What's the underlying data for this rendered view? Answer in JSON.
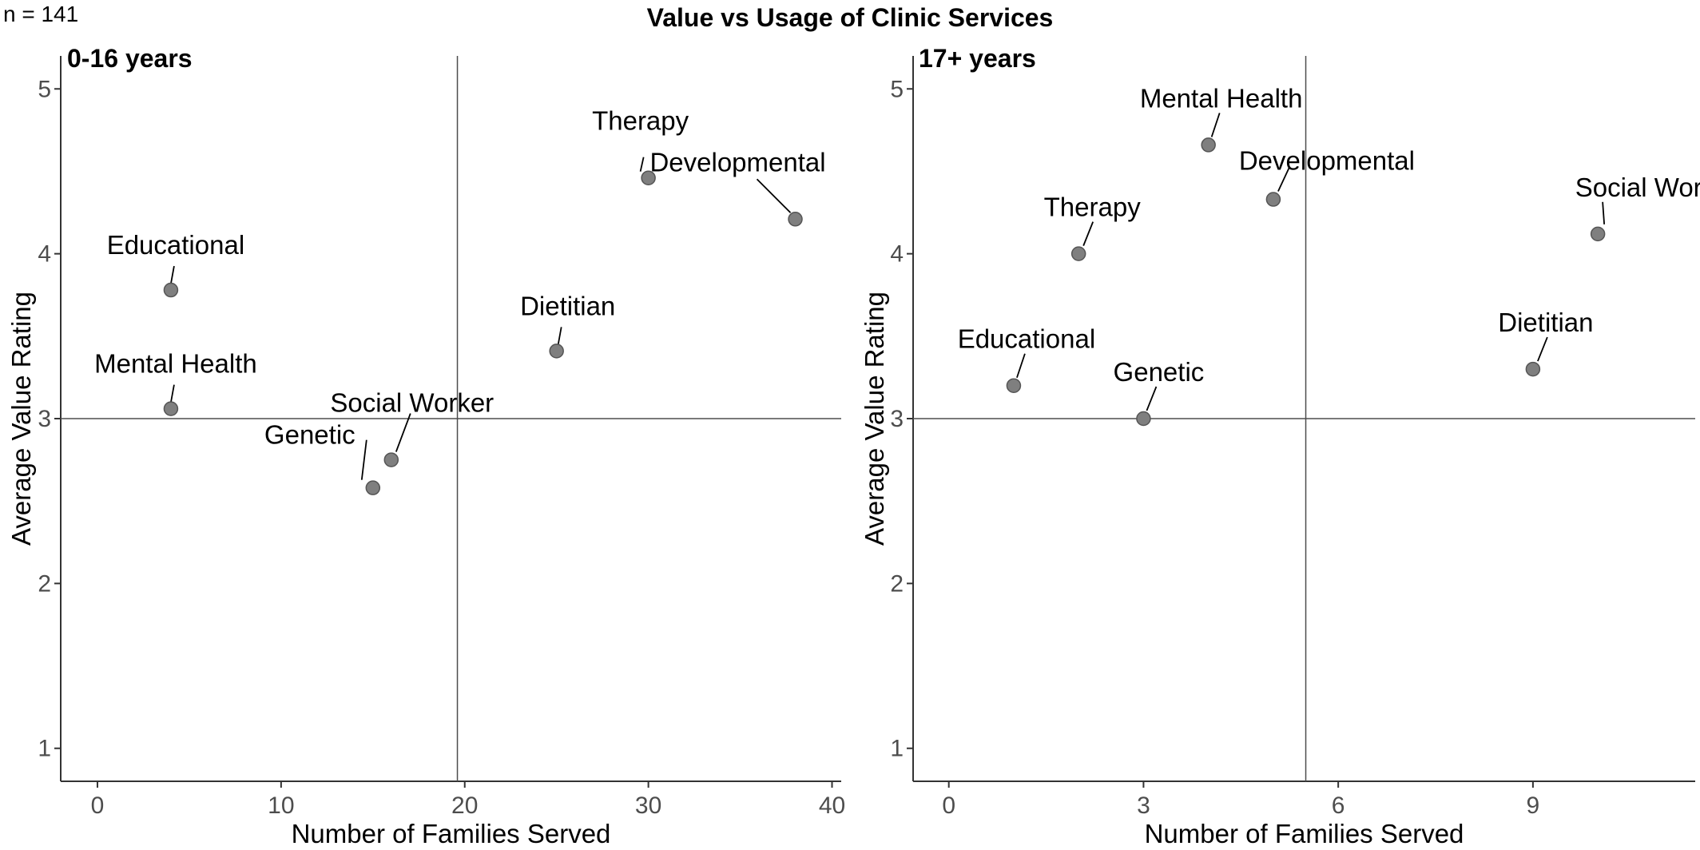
{
  "header": {
    "n_label": "n = 141",
    "title": "Value vs Usage of Clinic Services"
  },
  "colors": {
    "point": "#7f7f7f",
    "point_stroke": "#555555",
    "reference_line": "#4d4d4d",
    "axis": "#333333"
  },
  "chart_data": [
    {
      "type": "scatter",
      "title": "0-16 years",
      "xlabel": "Number of Families Served",
      "ylabel": "Average Value Rating",
      "xlim": [
        -2,
        40.5
      ],
      "ylim": [
        0.8,
        5.2
      ],
      "xticks": [
        0,
        10,
        20,
        30,
        40
      ],
      "yticks": [
        1,
        2,
        3,
        4,
        5
      ],
      "reference_lines": {
        "x": 19.6,
        "y": 3
      },
      "grid": false,
      "points": [
        {
          "label": "Therapy",
          "x": 30,
          "y": 4.46
        },
        {
          "label": "Developmental",
          "x": 38,
          "y": 4.21
        },
        {
          "label": "Educational",
          "x": 4,
          "y": 3.78
        },
        {
          "label": "Dietitian",
          "x": 25,
          "y": 3.41
        },
        {
          "label": "Mental Health",
          "x": 4,
          "y": 3.06
        },
        {
          "label": "Social Worker",
          "x": 16,
          "y": 2.75
        },
        {
          "label": "Genetic",
          "x": 15,
          "y": 2.58
        }
      ]
    },
    {
      "type": "scatter",
      "title": "17+ years",
      "xlabel": "Number of Families Served",
      "ylabel": "Average Value Rating",
      "xlim": [
        -0.55,
        11.5
      ],
      "ylim": [
        0.8,
        5.2
      ],
      "xticks": [
        0,
        3,
        6,
        9
      ],
      "yticks": [
        1,
        2,
        3,
        4,
        5
      ],
      "reference_lines": {
        "x": 5.5,
        "y": 3
      },
      "grid": false,
      "points": [
        {
          "label": "Mental Health",
          "x": 4,
          "y": 4.66
        },
        {
          "label": "Developmental",
          "x": 5,
          "y": 4.33
        },
        {
          "label": "Social Worker",
          "x": 10,
          "y": 4.12
        },
        {
          "label": "Therapy",
          "x": 2,
          "y": 4.0
        },
        {
          "label": "Dietitian",
          "x": 9,
          "y": 3.3
        },
        {
          "label": "Educational",
          "x": 1,
          "y": 3.2
        },
        {
          "label": "Genetic",
          "x": 3,
          "y": 3.0
        }
      ]
    }
  ]
}
